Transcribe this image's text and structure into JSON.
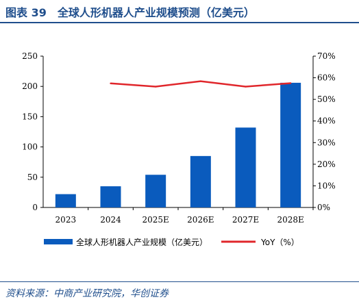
{
  "header": {
    "title": "图表 39　全球人形机器人产业规模预测（亿美元）"
  },
  "source": {
    "text": "资料来源：中商产业研究院，华创证券"
  },
  "colors": {
    "bar": "#0a5bbd",
    "line": "#e0262b",
    "heading": "#1f4e8c"
  },
  "chart_data": {
    "type": "bar",
    "categories": [
      "2023",
      "2024",
      "2025E",
      "2026E",
      "2027E",
      "2028E"
    ],
    "series": [
      {
        "name": "全球人形机器人产业规模（亿美元）",
        "type": "bar",
        "axis": "left",
        "values": [
          22,
          35,
          54,
          85,
          132,
          206
        ]
      },
      {
        "name": "YoY（%）",
        "type": "line",
        "axis": "right",
        "x": [
          "2024",
          "2025E",
          "2026E",
          "2027E",
          "2028E"
        ],
        "values": [
          57.4,
          55.9,
          58.4,
          55.9,
          57.5
        ]
      }
    ],
    "y_left": {
      "lim": [
        0,
        250
      ],
      "ticks": [
        "0",
        "50",
        "100",
        "150",
        "200",
        "250"
      ]
    },
    "y_right": {
      "lim": [
        0,
        70
      ],
      "ticks": [
        "0%",
        "10%",
        "20%",
        "30%",
        "40%",
        "50%",
        "60%",
        "70%"
      ]
    },
    "grid": false,
    "legend": "bottom"
  }
}
